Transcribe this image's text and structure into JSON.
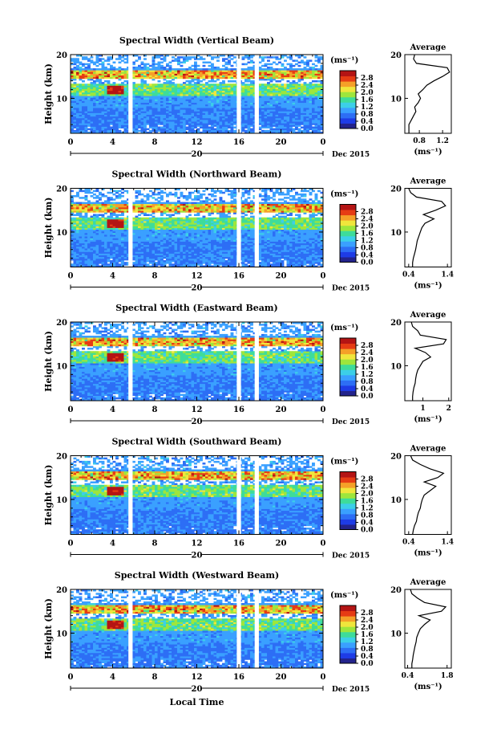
{
  "figure": {
    "xlabel": "Local Time",
    "date_label": "Dec 2015",
    "day_label": "20",
    "colorbar_unit": "(ms⁻¹)",
    "colorbar_ticks": [
      "0.0",
      "0.4",
      "0.8",
      "1.2",
      "1.6",
      "2.0",
      "2.4",
      "2.8"
    ],
    "x_ticks": [
      "0",
      "4",
      "8",
      "12",
      "16",
      "20",
      "0"
    ],
    "y_ticks": [
      "10",
      "20"
    ],
    "ylabel": "Height (km)",
    "profile_title": "Average",
    "profile_xlabel": "(ms⁻¹)",
    "colors": {
      "colormap": [
        "#23238c",
        "#1e3ce6",
        "#2d6ef5",
        "#3aa0ff",
        "#3ccfe8",
        "#3edc9a",
        "#9ee63c",
        "#f0e63c",
        "#f5a028",
        "#e63c14",
        "#b41414"
      ],
      "plot_bg": "#ffffff",
      "ink": "#000000"
    }
  },
  "chart_data": [
    {
      "type": "heatmap",
      "title": "Spectral Width (Vertical Beam)",
      "x_range_hours": [
        0,
        24
      ],
      "y_range_km": [
        2,
        20
      ],
      "data_gaps_hours": [
        [
          5.5,
          5.9
        ],
        [
          15.8,
          16.2
        ],
        [
          17.5,
          17.9
        ]
      ],
      "clim": [
        0.0,
        2.8
      ],
      "profile": {
        "xticks": [
          "0.8",
          "1.2"
        ],
        "xlim": [
          0.55,
          1.35
        ],
        "heights_km": [
          2,
          3,
          4,
          5,
          6,
          7,
          8,
          9,
          10,
          11,
          12,
          13,
          14,
          15,
          16,
          17,
          18,
          19,
          20
        ],
        "values": [
          0.62,
          0.62,
          0.62,
          0.66,
          0.7,
          0.74,
          0.72,
          0.78,
          0.82,
          0.78,
          0.86,
          0.93,
          1.05,
          1.2,
          1.32,
          1.28,
          0.75,
          0.7,
          0.72
        ]
      }
    },
    {
      "type": "heatmap",
      "title": "Spectral Width (Northward Beam)",
      "x_range_hours": [
        0,
        24
      ],
      "y_range_km": [
        2,
        20
      ],
      "data_gaps_hours": [
        [
          5.5,
          5.9
        ],
        [
          15.8,
          16.2
        ],
        [
          17.5,
          17.9
        ]
      ],
      "clim": [
        0.0,
        2.8
      ],
      "profile": {
        "xticks": [
          "0.4",
          "1.4"
        ],
        "xlim": [
          0.3,
          1.5
        ],
        "heights_km": [
          2,
          3,
          4,
          5,
          6,
          7,
          8,
          9,
          10,
          11,
          12,
          13,
          14,
          15,
          16,
          17,
          18,
          19,
          20
        ],
        "values": [
          0.5,
          0.5,
          0.52,
          0.55,
          0.58,
          0.6,
          0.62,
          0.66,
          0.7,
          0.74,
          0.82,
          1.05,
          0.78,
          1.1,
          1.35,
          1.25,
          0.6,
          0.45,
          0.4
        ]
      }
    },
    {
      "type": "heatmap",
      "title": "Spectral Width (Eastward Beam)",
      "x_range_hours": [
        0,
        24
      ],
      "y_range_km": [
        2,
        20
      ],
      "data_gaps_hours": [
        [
          5.5,
          5.9
        ],
        [
          15.8,
          16.2
        ],
        [
          17.5,
          17.9
        ]
      ],
      "clim": [
        0.0,
        2.8
      ],
      "profile": {
        "xticks": [
          "1",
          "2"
        ],
        "xlim": [
          0.3,
          2.1
        ],
        "heights_km": [
          2,
          3,
          4,
          5,
          6,
          7,
          8,
          9,
          10,
          11,
          12,
          13,
          14,
          15,
          16,
          17,
          18,
          19,
          20
        ],
        "values": [
          0.6,
          0.6,
          0.62,
          0.65,
          0.7,
          0.72,
          0.75,
          0.8,
          0.9,
          1.0,
          1.3,
          1.1,
          0.7,
          1.8,
          1.9,
          0.9,
          0.8,
          0.6,
          0.55
        ]
      }
    },
    {
      "type": "heatmap",
      "title": "Spectral Width (Southward Beam)",
      "x_range_hours": [
        0,
        24
      ],
      "y_range_km": [
        2,
        20
      ],
      "data_gaps_hours": [
        [
          5.5,
          5.9
        ],
        [
          15.8,
          16.2
        ],
        [
          17.5,
          17.9
        ]
      ],
      "clim": [
        0.0,
        2.8
      ],
      "profile": {
        "xticks": [
          "0.4",
          "1.4"
        ],
        "xlim": [
          0.3,
          1.5
        ],
        "heights_km": [
          2,
          3,
          4,
          5,
          6,
          7,
          8,
          9,
          10,
          11,
          12,
          13,
          14,
          15,
          16,
          17,
          18,
          19,
          20
        ],
        "values": [
          0.5,
          0.52,
          0.55,
          0.6,
          0.62,
          0.65,
          0.7,
          0.72,
          0.75,
          0.8,
          0.95,
          1.1,
          0.8,
          1.15,
          1.3,
          0.95,
          0.7,
          0.5,
          0.45
        ]
      }
    },
    {
      "type": "heatmap",
      "title": "Spectral Width (Westward Beam)",
      "x_range_hours": [
        0,
        24
      ],
      "y_range_km": [
        2,
        20
      ],
      "data_gaps_hours": [
        [
          5.5,
          5.9
        ],
        [
          15.8,
          16.2
        ],
        [
          17.5,
          17.9
        ]
      ],
      "clim": [
        0.0,
        2.8
      ],
      "profile": {
        "xticks": [
          "0.4",
          "1.8"
        ],
        "xlim": [
          0.3,
          1.95
        ],
        "heights_km": [
          2,
          3,
          4,
          5,
          6,
          7,
          8,
          9,
          10,
          11,
          12,
          13,
          14,
          15,
          16,
          17,
          18,
          19,
          20
        ],
        "values": [
          0.55,
          0.55,
          0.58,
          0.6,
          0.63,
          0.66,
          0.7,
          0.72,
          0.78,
          0.85,
          1.0,
          1.2,
          0.8,
          1.6,
          1.75,
          1.0,
          0.75,
          0.55,
          0.5
        ]
      }
    }
  ]
}
